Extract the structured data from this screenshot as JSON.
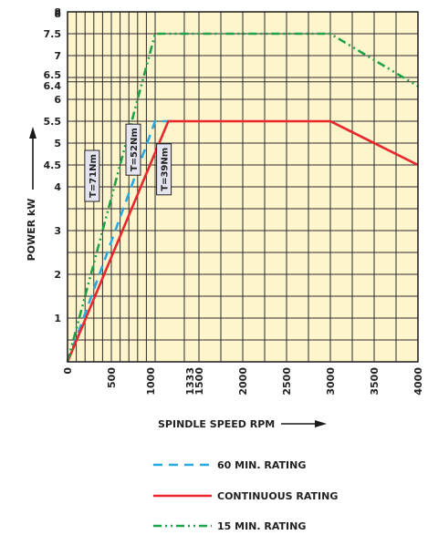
{
  "chart_data": {
    "type": "line",
    "xlabel": "SPINDLE SPEED RPM",
    "ylabel": "POWER kW",
    "xlim": [
      0,
      4000
    ],
    "ylim": [
      0,
      8
    ],
    "grid": true,
    "background": "#fff5cc",
    "x_ticks": [
      "0",
      "500",
      "1000",
      "1333",
      "1500",
      "2000",
      "2500",
      "3000",
      "3500",
      "4000"
    ],
    "x_tick_values": [
      0,
      500,
      1000,
      1333,
      1500,
      2000,
      2500,
      3000,
      3500,
      4000
    ],
    "y_ticks": [
      "1",
      "2",
      "3",
      "4",
      "4.5",
      "5",
      "5.5",
      "6",
      "6.4",
      "6.5",
      "7",
      "7.5",
      "8"
    ],
    "y_tick_values": [
      1,
      2,
      3,
      4,
      4.5,
      5,
      5.5,
      6,
      6.4,
      6.5,
      7,
      7.5,
      8
    ],
    "x_grid_values": [
      100,
      200,
      300,
      400,
      500,
      600,
      700,
      800,
      900,
      1000,
      1333,
      1500,
      1750,
      2000,
      2250,
      2500,
      2750,
      3000,
      3250,
      3500,
      3750
    ],
    "y_grid_values": [
      0.5,
      1,
      1.5,
      2,
      2.5,
      3,
      3.5,
      4,
      4.5,
      5,
      5.5,
      6,
      6.4,
      6.5,
      7,
      7.5
    ],
    "series": [
      {
        "name": "60 MIN. RATING",
        "color": "#29a9e0",
        "style": "dashed",
        "x": [
          0,
          1000,
          1200
        ],
        "y": [
          0,
          5.5,
          5.5
        ]
      },
      {
        "name": "CONTINUOUS RATING",
        "color": "#e8262b",
        "style": "solid",
        "x": [
          0,
          1150,
          3000,
          4000
        ],
        "y": [
          0,
          5.5,
          5.5,
          4.5
        ]
      },
      {
        "name": "15 MIN. RATING",
        "color": "#1fa34a",
        "style": "dash-dot-dot",
        "x": [
          0,
          1000,
          3000,
          4000
        ],
        "y": [
          0,
          7.5,
          7.5,
          6.3
        ]
      }
    ],
    "annotations": [
      {
        "text": "T=71Nm",
        "x": 280,
        "y": 4.25
      },
      {
        "text": "T=52Nm",
        "x": 750,
        "y": 4.85
      },
      {
        "text": "T=39Nm",
        "x": 1100,
        "y": 4.4
      }
    ],
    "legend": [
      {
        "label": "60 MIN. RATING",
        "series": 0
      },
      {
        "label": "CONTINUOUS RATING",
        "series": 1
      },
      {
        "label": "15 MIN. RATING",
        "series": 2
      }
    ],
    "legend_position": "bottom-center"
  }
}
